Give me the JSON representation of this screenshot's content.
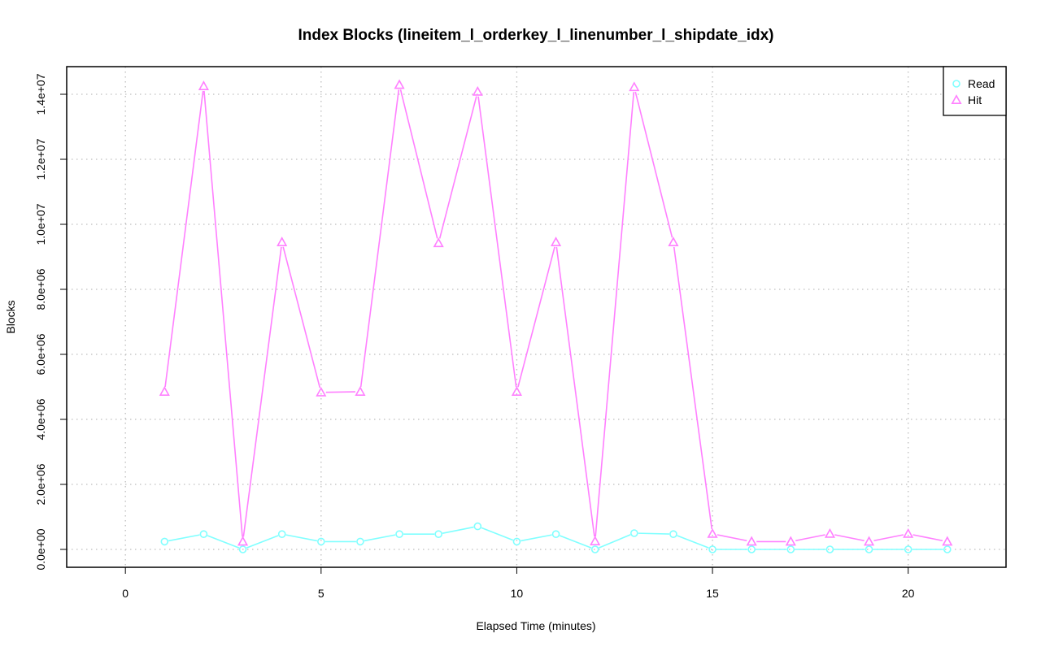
{
  "chart_data": {
    "type": "line",
    "title": "Index Blocks (lineitem_l_orderkey_l_linenumber_l_shipdate_idx)",
    "xlabel": "Elapsed Time (minutes)",
    "ylabel": "Blocks",
    "xlim": [
      -1.5,
      22.5
    ],
    "ylim": [
      -550000,
      14850000
    ],
    "x_ticks": [
      0,
      5,
      10,
      15,
      20
    ],
    "x_tick_labels": [
      "0",
      "5",
      "10",
      "15",
      "20"
    ],
    "y_ticks": [
      0,
      2000000,
      4000000,
      6000000,
      8000000,
      10000000,
      12000000,
      14000000
    ],
    "y_tick_labels": [
      "0.0e+00",
      "2.0e+06",
      "4.0e+06",
      "6.0e+06",
      "8.0e+06",
      "1.0e+07",
      "1.2e+07",
      "1.4e+07"
    ],
    "grid": true,
    "legend_position": "top-right",
    "x": [
      1,
      2,
      3,
      4,
      5,
      6,
      7,
      8,
      9,
      10,
      11,
      12,
      13,
      14,
      15,
      16,
      17,
      18,
      19,
      20,
      21
    ],
    "series": [
      {
        "name": "Read",
        "color": "#80ffff",
        "marker": "circle",
        "values": [
          240000,
          470000,
          0,
          470000,
          240000,
          240000,
          470000,
          470000,
          710000,
          240000,
          470000,
          0,
          500000,
          470000,
          0,
          0,
          0,
          0,
          0,
          0,
          0
        ]
      },
      {
        "name": "Hit",
        "color": "#ff80ff",
        "marker": "triangle",
        "values": [
          4850000,
          14250000,
          240000,
          9450000,
          4830000,
          4850000,
          14290000,
          9420000,
          14080000,
          4850000,
          9450000,
          250000,
          14220000,
          9450000,
          480000,
          240000,
          240000,
          480000,
          240000,
          480000,
          240000
        ]
      }
    ]
  }
}
